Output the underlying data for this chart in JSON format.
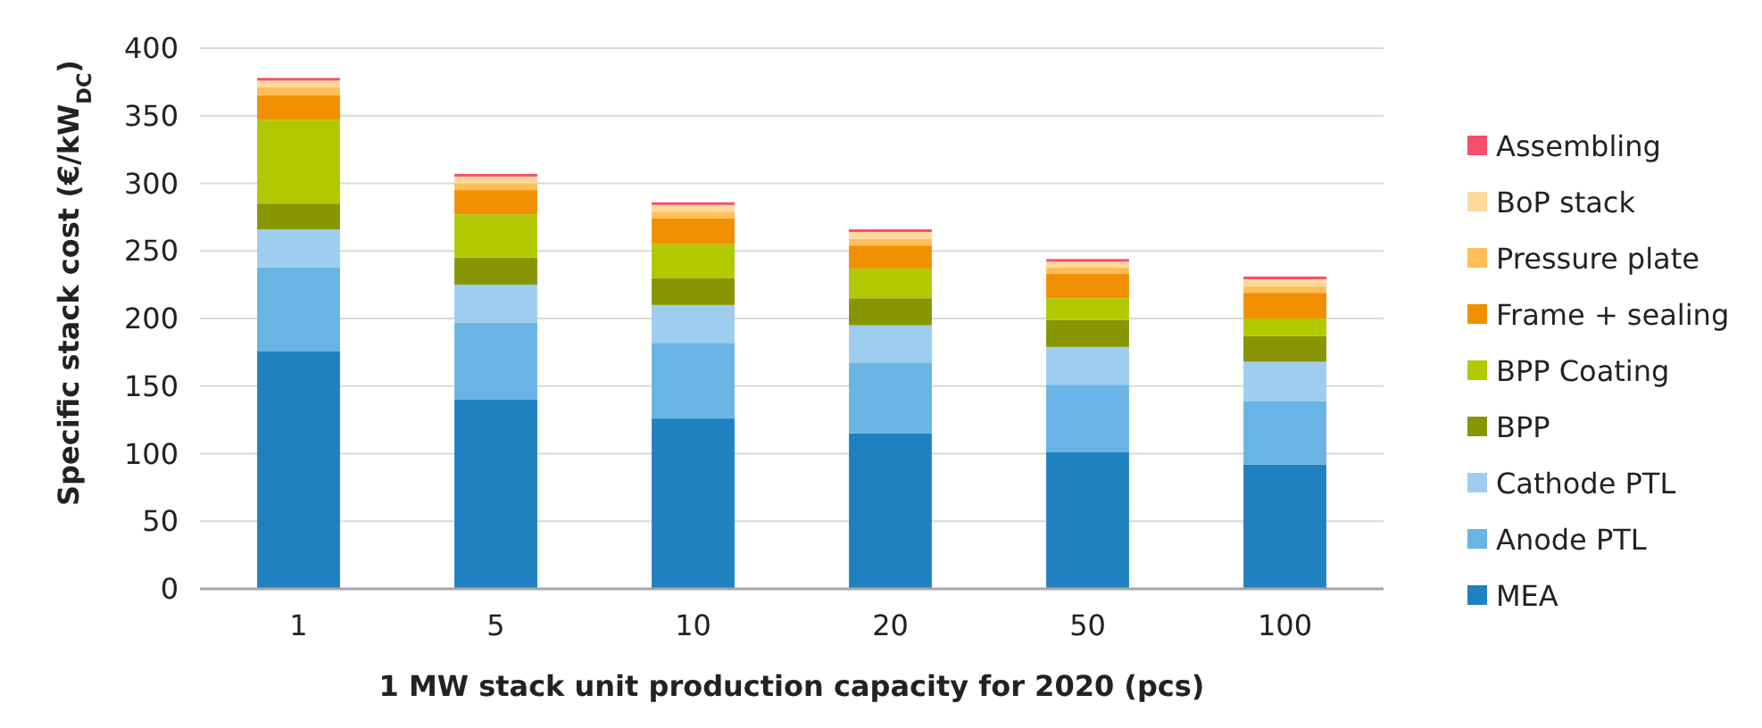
{
  "chart_data": {
    "type": "bar",
    "stacked": true,
    "xlabel": "1 MW stack unit production capacity for 2020 (pcs)",
    "ylabel": "Specific stack cost (€/kW$_{DC}$)",
    "categories": [
      "1",
      "5",
      "10",
      "20",
      "50",
      "100"
    ],
    "ylim": [
      0,
      400
    ],
    "yticks": [
      0,
      50,
      100,
      150,
      200,
      250,
      300,
      350,
      400
    ],
    "grid": "y",
    "legend": "right",
    "series": [
      {
        "name": "MEA",
        "color": "#1f81c0",
        "values": [
          176,
          140,
          126,
          115,
          101,
          92
        ]
      },
      {
        "name": "Anode PTL",
        "color": "#69b4e5",
        "values": [
          62,
          57,
          56,
          52,
          50,
          47
        ]
      },
      {
        "name": "Cathode PTL",
        "color": "#9dcdef",
        "values": [
          28,
          28,
          28,
          28,
          28,
          29
        ]
      },
      {
        "name": "BPP",
        "color": "#879500",
        "values": [
          19,
          20,
          20,
          20,
          20,
          19
        ]
      },
      {
        "name": "BPP Coating",
        "color": "#b2c800",
        "values": [
          62,
          32,
          25,
          22,
          16,
          13
        ]
      },
      {
        "name": "Frame + sealing",
        "color": "#f09000",
        "values": [
          18,
          18,
          19,
          17,
          18,
          19
        ]
      },
      {
        "name": "Pressure plate",
        "color": "#ffbe58",
        "values": [
          6,
          5,
          5,
          5,
          5,
          5
        ]
      },
      {
        "name": "BoP stack",
        "color": "#ffd89b",
        "values": [
          5,
          5,
          5,
          5,
          4,
          5
        ]
      },
      {
        "name": "Assembling",
        "color": "#f5506a",
        "values": [
          2,
          2,
          2,
          2,
          2,
          2
        ]
      }
    ]
  }
}
